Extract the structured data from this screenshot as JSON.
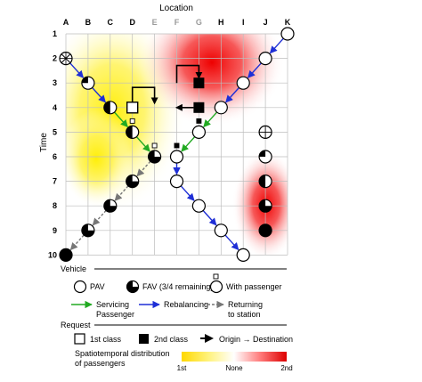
{
  "axes": {
    "x_title": "Location",
    "y_title": "Time",
    "columns": [
      "A",
      "B",
      "C",
      "D",
      "E",
      "F",
      "G",
      "H",
      "I",
      "J",
      "K"
    ],
    "rows": [
      "1",
      "2",
      "3",
      "4",
      "5",
      "6",
      "7",
      "8",
      "9",
      "10"
    ]
  },
  "legend": {
    "vehicle_heading": "Vehicle",
    "pav_label": "PAV",
    "fav_label": "FAV (3/4 remaining)",
    "with_passenger_label": "With passenger",
    "servicing_label_1": "Servicing",
    "servicing_label_2": "Passenger",
    "rebalancing_label": "Rebalancing",
    "returning_label_1": "Returning",
    "returning_label_2": "to station",
    "request_heading": "Request",
    "first_class_label": "1st class",
    "second_class_label": "2nd class",
    "origin_dest_label": "Origin → Destination",
    "spatio_label_1": "Spatiotemporal distribution",
    "spatio_label_2": "of passengers",
    "scale_left": "1st",
    "scale_mid": "None",
    "scale_right": "2nd"
  },
  "colors": {
    "servicing": "#22aa22",
    "rebalancing": "#1f2fd6",
    "returning": "#777777",
    "first_class_heat": "#ffee00",
    "second_class_heat": "#ee0000"
  }
}
